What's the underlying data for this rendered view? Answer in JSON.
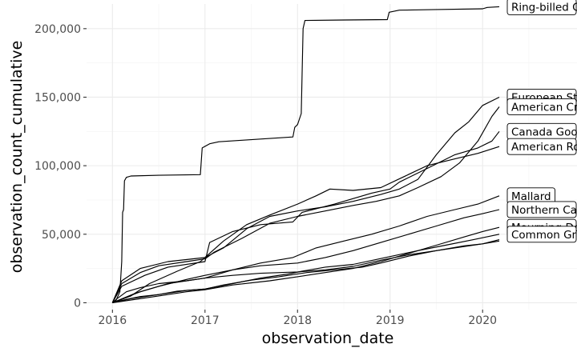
{
  "chart_data": {
    "type": "line",
    "title": "",
    "xlabel": "observation_date",
    "ylabel": "observation_count_cumulative",
    "xlim": [
      2015.72,
      2021.02
    ],
    "ylim": [
      -5000,
      218000
    ],
    "x_ticks": [
      2016,
      2017,
      2018,
      2019,
      2020
    ],
    "x_tick_labels": [
      "2016",
      "2017",
      "2018",
      "2019",
      "2020"
    ],
    "y_ticks": [
      0,
      50000,
      100000,
      150000,
      200000
    ],
    "y_tick_labels": [
      "0",
      "50,000",
      "100,000",
      "150,000",
      "200,000"
    ],
    "grid": true,
    "legend": "none",
    "series": [
      {
        "name": "Ring-billed Gull",
        "label_text": "Ring-billed G",
        "label_y": 216000,
        "points": [
          [
            2016.0,
            0
          ],
          [
            2016.04,
            2000
          ],
          [
            2016.08,
            8000
          ],
          [
            2016.1,
            30000
          ],
          [
            2016.11,
            66000
          ],
          [
            2016.12,
            68000
          ],
          [
            2016.13,
            89000
          ],
          [
            2016.15,
            91500
          ],
          [
            2016.2,
            92500
          ],
          [
            2016.5,
            93000
          ],
          [
            2016.95,
            93500
          ],
          [
            2016.97,
            113000
          ],
          [
            2017.05,
            116000
          ],
          [
            2017.15,
            117500
          ],
          [
            2017.5,
            119000
          ],
          [
            2017.95,
            121000
          ],
          [
            2017.97,
            128000
          ],
          [
            2018.0,
            130000
          ],
          [
            2018.04,
            138000
          ],
          [
            2018.06,
            200000
          ],
          [
            2018.08,
            206000
          ],
          [
            2018.5,
            206300
          ],
          [
            2018.97,
            206600
          ],
          [
            2018.99,
            212000
          ],
          [
            2019.1,
            213500
          ],
          [
            2019.5,
            214000
          ],
          [
            2020.0,
            214500
          ],
          [
            2020.05,
            215500
          ],
          [
            2020.18,
            216000
          ]
        ]
      },
      {
        "name": "European Starling",
        "label_text": "European Star",
        "label_y": 150000,
        "points": [
          [
            2016.0,
            0
          ],
          [
            2016.1,
            16000
          ],
          [
            2016.3,
            25000
          ],
          [
            2016.6,
            30000
          ],
          [
            2017.0,
            33000
          ],
          [
            2017.2,
            40000
          ],
          [
            2017.45,
            54000
          ],
          [
            2017.7,
            63000
          ],
          [
            2018.0,
            67000
          ],
          [
            2018.3,
            70000
          ],
          [
            2018.6,
            74000
          ],
          [
            2018.9,
            79000
          ],
          [
            2019.1,
            83000
          ],
          [
            2019.3,
            90000
          ],
          [
            2019.5,
            108000
          ],
          [
            2019.7,
            124000
          ],
          [
            2019.85,
            132000
          ],
          [
            2020.0,
            144000
          ],
          [
            2020.18,
            150000
          ]
        ]
      },
      {
        "name": "American Crow",
        "label_text": "American Cro",
        "label_y": 143000,
        "points": [
          [
            2016.0,
            0
          ],
          [
            2016.1,
            14000
          ],
          [
            2016.3,
            22000
          ],
          [
            2016.5,
            27000
          ],
          [
            2016.8,
            30000
          ],
          [
            2017.0,
            32000
          ],
          [
            2017.1,
            37000
          ],
          [
            2017.4,
            47000
          ],
          [
            2017.7,
            58000
          ],
          [
            2018.0,
            63000
          ],
          [
            2018.3,
            67000
          ],
          [
            2018.6,
            71000
          ],
          [
            2018.85,
            74000
          ],
          [
            2019.1,
            78000
          ],
          [
            2019.3,
            84000
          ],
          [
            2019.55,
            92000
          ],
          [
            2019.75,
            102000
          ],
          [
            2019.95,
            118000
          ],
          [
            2020.1,
            136000
          ],
          [
            2020.18,
            143000
          ]
        ]
      },
      {
        "name": "Canada Goose",
        "label_text": "Canada Goos",
        "label_y": 125000,
        "points": [
          [
            2016.0,
            0
          ],
          [
            2016.1,
            12000
          ],
          [
            2016.35,
            20000
          ],
          [
            2016.6,
            26000
          ],
          [
            2017.0,
            30000
          ],
          [
            2017.05,
            44000
          ],
          [
            2017.3,
            52000
          ],
          [
            2017.6,
            57000
          ],
          [
            2017.95,
            59000
          ],
          [
            2018.05,
            66000
          ],
          [
            2018.4,
            72000
          ],
          [
            2018.8,
            80000
          ],
          [
            2019.0,
            83000
          ],
          [
            2019.1,
            88000
          ],
          [
            2019.4,
            98000
          ],
          [
            2019.7,
            108000
          ],
          [
            2019.95,
            113000
          ],
          [
            2020.1,
            118000
          ],
          [
            2020.18,
            125000
          ]
        ]
      },
      {
        "name": "American Robin",
        "label_text": "American Rob",
        "label_y": 114000,
        "points": [
          [
            2016.0,
            0
          ],
          [
            2016.2,
            5000
          ],
          [
            2016.4,
            14000
          ],
          [
            2016.7,
            23000
          ],
          [
            2016.95,
            30000
          ],
          [
            2017.2,
            45000
          ],
          [
            2017.45,
            57000
          ],
          [
            2017.7,
            64000
          ],
          [
            2018.0,
            72000
          ],
          [
            2018.2,
            78000
          ],
          [
            2018.35,
            83000
          ],
          [
            2018.6,
            82000
          ],
          [
            2018.9,
            84000
          ],
          [
            2019.15,
            92000
          ],
          [
            2019.4,
            100000
          ],
          [
            2019.7,
            105000
          ],
          [
            2019.95,
            109000
          ],
          [
            2020.18,
            114000
          ]
        ]
      },
      {
        "name": "Mallard",
        "label_text": "Mallard",
        "label_y": 78000,
        "points": [
          [
            2016.0,
            0
          ],
          [
            2016.3,
            8000
          ],
          [
            2016.6,
            14000
          ],
          [
            2017.0,
            18000
          ],
          [
            2017.3,
            24000
          ],
          [
            2017.6,
            29000
          ],
          [
            2017.95,
            33000
          ],
          [
            2018.2,
            40000
          ],
          [
            2018.5,
            45000
          ],
          [
            2018.8,
            50000
          ],
          [
            2019.1,
            56000
          ],
          [
            2019.4,
            63000
          ],
          [
            2019.7,
            68000
          ],
          [
            2019.95,
            72000
          ],
          [
            2020.18,
            78000
          ]
        ]
      },
      {
        "name": "Northern Cardinal",
        "label_text": "Northern Card",
        "label_y": 68000,
        "points": [
          [
            2016.0,
            0
          ],
          [
            2016.25,
            7000
          ],
          [
            2016.5,
            12000
          ],
          [
            2016.8,
            17000
          ],
          [
            2017.0,
            20000
          ],
          [
            2017.3,
            24000
          ],
          [
            2017.6,
            27000
          ],
          [
            2018.0,
            29000
          ],
          [
            2018.3,
            33000
          ],
          [
            2018.6,
            38000
          ],
          [
            2018.9,
            44000
          ],
          [
            2019.2,
            50000
          ],
          [
            2019.5,
            56000
          ],
          [
            2019.8,
            62000
          ],
          [
            2020.0,
            65000
          ],
          [
            2020.18,
            68000
          ]
        ]
      },
      {
        "name": "Mourning Dove",
        "label_text": "Mourning Dov",
        "label_y": 55000,
        "points": [
          [
            2016.0,
            0
          ],
          [
            2016.2,
            2000
          ],
          [
            2016.5,
            5000
          ],
          [
            2016.8,
            8000
          ],
          [
            2017.0,
            9500
          ],
          [
            2017.3,
            13000
          ],
          [
            2017.7,
            16000
          ],
          [
            2018.0,
            19000
          ],
          [
            2018.3,
            22000
          ],
          [
            2018.6,
            25000
          ],
          [
            2018.9,
            30000
          ],
          [
            2019.2,
            36000
          ],
          [
            2019.5,
            42000
          ],
          [
            2019.8,
            48000
          ],
          [
            2020.0,
            52000
          ],
          [
            2020.18,
            55000
          ]
        ]
      },
      {
        "name": "Common Grackle",
        "label_text": "Common Gra",
        "label_y": 50000,
        "points": [
          [
            2016.0,
            0
          ],
          [
            2016.2,
            3000
          ],
          [
            2016.5,
            6000
          ],
          [
            2016.8,
            9000
          ],
          [
            2017.0,
            10000
          ],
          [
            2017.3,
            14000
          ],
          [
            2017.6,
            18000
          ],
          [
            2017.9,
            21000
          ],
          [
            2018.05,
            23000
          ],
          [
            2018.3,
            26000
          ],
          [
            2018.6,
            28000
          ],
          [
            2018.95,
            33000
          ],
          [
            2019.3,
            38000
          ],
          [
            2019.6,
            42000
          ],
          [
            2019.9,
            46000
          ],
          [
            2020.18,
            50000
          ]
        ]
      },
      {
        "name": "",
        "label_text": "",
        "label_y": 46000,
        "points": [
          [
            2016.0,
            0
          ],
          [
            2016.15,
            2500
          ],
          [
            2016.3,
            4500
          ],
          [
            2016.5,
            6000
          ],
          [
            2016.7,
            8500
          ],
          [
            2017.0,
            10000
          ],
          [
            2017.2,
            13000
          ],
          [
            2017.5,
            16500
          ],
          [
            2017.8,
            19000
          ],
          [
            2018.1,
            22000
          ],
          [
            2018.4,
            24000
          ],
          [
            2018.7,
            26000
          ],
          [
            2018.9,
            29000
          ],
          [
            2019.2,
            34000
          ],
          [
            2019.5,
            38000
          ],
          [
            2019.8,
            41000
          ],
          [
            2020.0,
            43000
          ],
          [
            2020.18,
            46000
          ]
        ]
      },
      {
        "name": "",
        "label_text": "",
        "label_y": 45000,
        "points": [
          [
            2016.0,
            0
          ],
          [
            2016.05,
            3000
          ],
          [
            2016.15,
            8000
          ],
          [
            2016.3,
            11000
          ],
          [
            2016.5,
            14000
          ],
          [
            2016.8,
            16000
          ],
          [
            2017.0,
            18000
          ],
          [
            2017.3,
            20000
          ],
          [
            2017.6,
            21500
          ],
          [
            2018.0,
            22500
          ],
          [
            2018.3,
            24000
          ],
          [
            2018.6,
            26500
          ],
          [
            2018.9,
            31000
          ],
          [
            2019.2,
            35000
          ],
          [
            2019.5,
            38000
          ],
          [
            2019.8,
            41500
          ],
          [
            2020.0,
            43000
          ],
          [
            2020.18,
            45000
          ]
        ]
      }
    ]
  }
}
